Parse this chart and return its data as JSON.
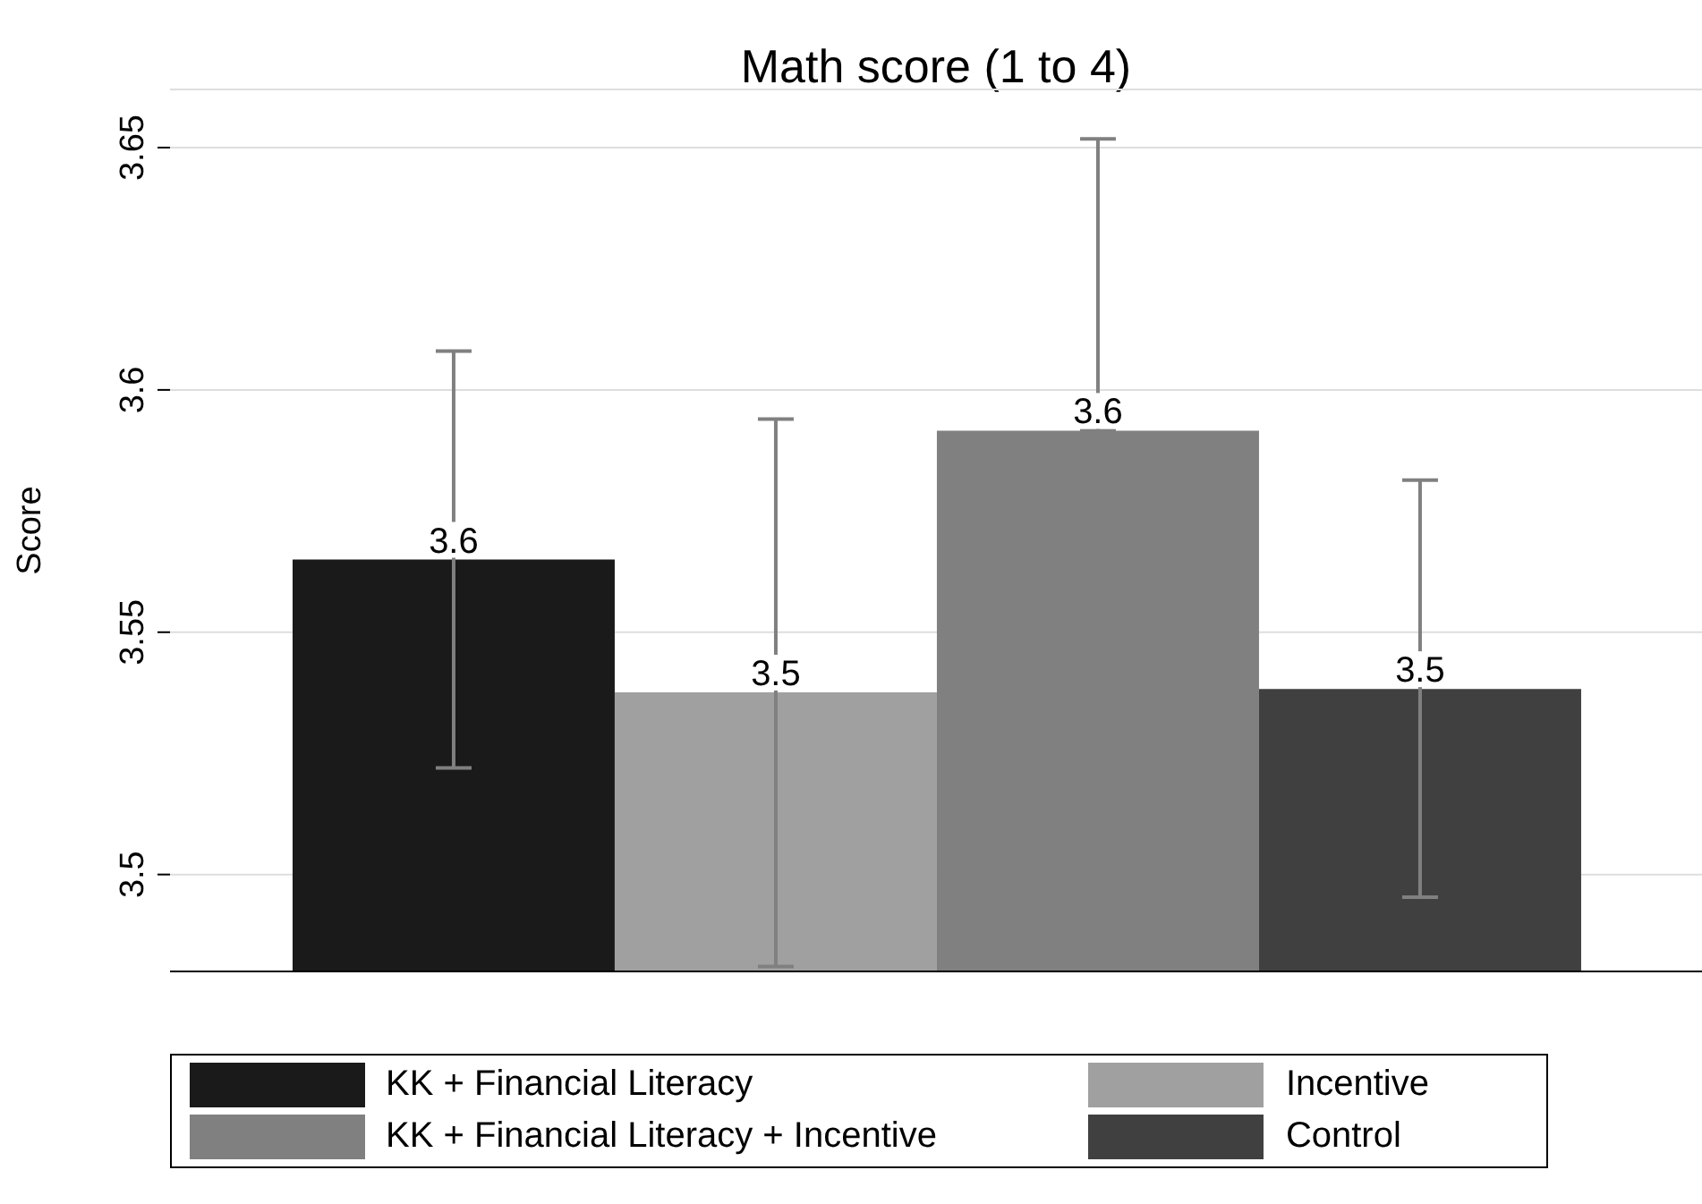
{
  "chart_data": {
    "type": "bar",
    "title": "Math score (1 to 4)",
    "ylabel": "Score",
    "categories": [
      null
    ],
    "series": [
      {
        "name": "KK + Financial Literacy",
        "color": "#1a1a1a",
        "values": [
          3.565
        ],
        "errors": [
          [
            3.522,
            3.608
          ]
        ],
        "value_labels": [
          "3.6"
        ]
      },
      {
        "name": "Incentive",
        "color": "#a0a0a0",
        "values": [
          3.5376
        ],
        "errors": [
          [
            3.481,
            3.594
          ]
        ],
        "value_labels": [
          "3.5"
        ]
      },
      {
        "name": "KK + Financial Literacy + Incentive",
        "color": "#808080",
        "values": [
          3.5916
        ],
        "errors": [
          [
            3.5916,
            3.6518
          ]
        ],
        "value_labels": [
          "3.6"
        ]
      },
      {
        "name": "Control",
        "color": "#404040",
        "values": [
          3.5383
        ],
        "errors": [
          [
            3.4953,
            3.5814
          ]
        ],
        "value_labels": [
          "3.5"
        ]
      }
    ],
    "ylim": [
      3.48,
      3.662
    ],
    "yticks": [
      3.5,
      3.55,
      3.6,
      3.65
    ],
    "grid": "y",
    "legend": "bottom"
  }
}
